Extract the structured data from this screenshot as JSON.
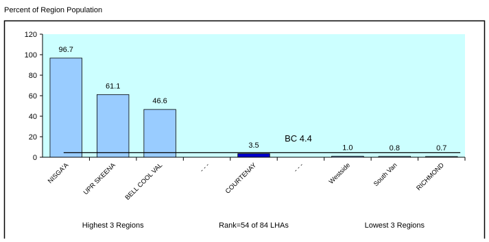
{
  "chart_data": {
    "type": "bar",
    "subtitle": "Percent of Region Population",
    "categories": [
      "NISGA'A",
      "UPR SKEENA",
      "BELL COOL VAL",
      "- - -",
      "COURTENAY",
      "- - -",
      "Westside",
      "South Van",
      "RICHMOND"
    ],
    "values": [
      96.7,
      61.1,
      46.6,
      null,
      3.5,
      null,
      1.0,
      0.8,
      0.7
    ],
    "value_labels": [
      "96.7",
      "61.1",
      "46.6",
      null,
      "3.5",
      null,
      "1.0",
      "0.8",
      "0.7"
    ],
    "colors": [
      "#99ccff",
      "#99ccff",
      "#99ccff",
      "#99ccff",
      "#0000cc",
      "#99ccff",
      "#99ccff",
      "#99ccff",
      "#99ccff"
    ],
    "ylim": [
      0,
      120
    ],
    "yticks": [
      0,
      20,
      40,
      60,
      80,
      100,
      120
    ],
    "reference": {
      "label": "BC 4.4",
      "value": 4.4
    },
    "groups": [
      "Highest 3 Regions",
      "Rank=54 of 84 LHAs",
      "Lowest 3 Regions"
    ]
  }
}
